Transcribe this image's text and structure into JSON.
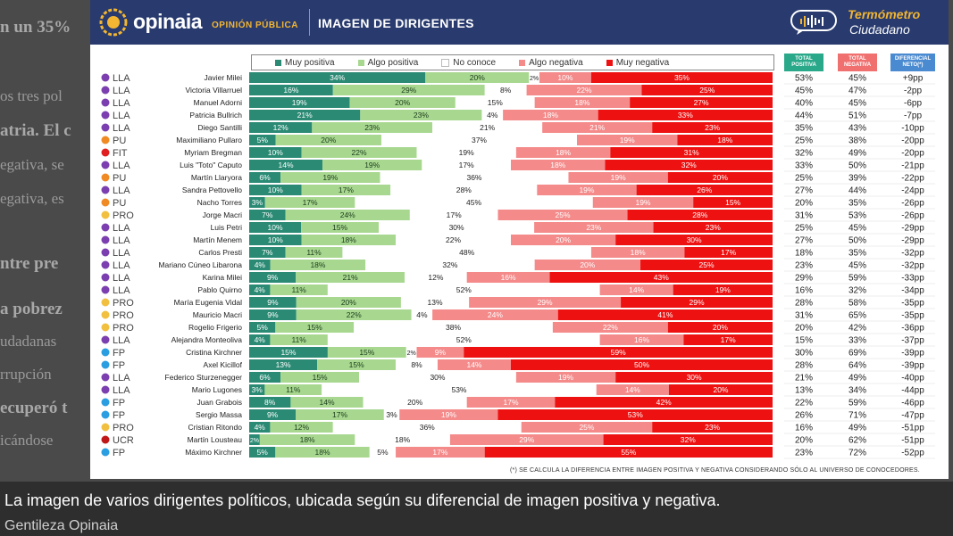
{
  "page": {
    "background_article_lines": [
      {
        "text": "n un 35%",
        "top": 20,
        "bold": true
      },
      {
        "text": "os tres pol",
        "top": 98,
        "bold": false
      },
      {
        "text": "atria. El c",
        "top": 136,
        "bold": true
      },
      {
        "text": "egativa, se",
        "top": 175,
        "bold": false
      },
      {
        "text": "egativa, es",
        "top": 213,
        "bold": false
      },
      {
        "text": "ntre pre",
        "top": 285,
        "bold": true
      },
      {
        "text": "a pobrez",
        "top": 336,
        "bold": true
      },
      {
        "text": "udadanas",
        "top": 373,
        "bold": false
      },
      {
        "text": "rrupción",
        "top": 410,
        "bold": false
      },
      {
        "text": "ecuperó t",
        "top": 447,
        "bold": true
      },
      {
        "text": "icándose",
        "top": 484,
        "bold": false
      }
    ],
    "caption": "La imagen de varios dirigentes políticos, ubicada según su diferencial de imagen positiva y negativa.",
    "credit": "Gentileza Opinaia"
  },
  "header": {
    "brand": "opinaia",
    "brand_sub": "OPINIÓN PÚBLICA",
    "title": "IMAGEN DE DIRIGENTES",
    "thermo_line1": "Termómetro",
    "thermo_line2": "Ciudadano"
  },
  "colors": {
    "muy_positiva": "#2a8a74",
    "algo_positiva": "#a8d890",
    "no_conoce": "#ffffff",
    "algo_negativa": "#f48a8a",
    "muy_negativa": "#ee1111",
    "total_positiva_head": "#2aa88a",
    "total_negativa_head": "#f07070",
    "diferencial_head": "#4a8ad0",
    "header_bg": "#283a6e"
  },
  "party_colors": {
    "LLA": "#7b3fb0",
    "PU": "#f08a24",
    "FIT": "#e02020",
    "PRO": "#f2c040",
    "FP": "#2a9ee0",
    "UCR": "#c01818"
  },
  "legend": [
    "Muy positiva",
    "Algo positiva",
    "No conoce",
    "Algo negativa",
    "Muy negativa"
  ],
  "columns": {
    "total_positiva": [
      "TOTAL",
      "POSITIVA"
    ],
    "total_negativa": [
      "TOTAL",
      "NEGATIVA"
    ],
    "diferencial": [
      "DIFERENCIAL",
      "NETO(*)"
    ]
  },
  "footnote": "(*) SE CALCULA LA DIFERENCIA ENTRE IMAGEN POSITIVA Y NEGATIVA CONSIDERANDO SÓLO AL UNIVERSO DE CONOCEDORES.",
  "chart_data": {
    "type": "bar",
    "stacked": true,
    "orientation": "horizontal",
    "title": "IMAGEN DE DIRIGENTES",
    "segments": [
      "Muy positiva",
      "Algo positiva",
      "No conoce",
      "Algo negativa",
      "Muy negativa"
    ],
    "rows": [
      {
        "party": "LLA",
        "name": "Javier Milei",
        "values": [
          34,
          20,
          2,
          10,
          35
        ],
        "total_pos": "53%",
        "total_neg": "45%",
        "diff": "+9pp"
      },
      {
        "party": "LLA",
        "name": "Victoria Villarruel",
        "values": [
          16,
          29,
          8,
          22,
          25
        ],
        "total_pos": "45%",
        "total_neg": "47%",
        "diff": "-2pp"
      },
      {
        "party": "LLA",
        "name": "Manuel Adorni",
        "values": [
          19,
          20,
          15,
          18,
          27
        ],
        "total_pos": "40%",
        "total_neg": "45%",
        "diff": "-6pp"
      },
      {
        "party": "LLA",
        "name": "Patricia Bullrich",
        "values": [
          21,
          23,
          4,
          18,
          33
        ],
        "total_pos": "44%",
        "total_neg": "51%",
        "diff": "-7pp"
      },
      {
        "party": "LLA",
        "name": "Diego Santilli",
        "values": [
          12,
          23,
          21,
          21,
          23
        ],
        "total_pos": "35%",
        "total_neg": "43%",
        "diff": "-10pp"
      },
      {
        "party": "PU",
        "name": "Maximiliano Pullaro",
        "values": [
          5,
          20,
          37,
          19,
          18
        ],
        "total_pos": "25%",
        "total_neg": "38%",
        "diff": "-20pp"
      },
      {
        "party": "FIT",
        "name": "Myriam Bregman",
        "values": [
          10,
          22,
          19,
          18,
          31
        ],
        "total_pos": "32%",
        "total_neg": "49%",
        "diff": "-20pp"
      },
      {
        "party": "LLA",
        "name": "Luis \"Toto\" Caputo",
        "values": [
          14,
          19,
          17,
          18,
          32
        ],
        "total_pos": "33%",
        "total_neg": "50%",
        "diff": "-21pp"
      },
      {
        "party": "PU",
        "name": "Martín Llaryora",
        "values": [
          6,
          19,
          36,
          19,
          20
        ],
        "total_pos": "25%",
        "total_neg": "39%",
        "diff": "-22pp"
      },
      {
        "party": "LLA",
        "name": "Sandra Pettovello",
        "values": [
          10,
          17,
          28,
          19,
          26
        ],
        "total_pos": "27%",
        "total_neg": "44%",
        "diff": "-24pp"
      },
      {
        "party": "PU",
        "name": "Nacho Torres",
        "values": [
          3,
          17,
          45,
          19,
          15
        ],
        "total_pos": "20%",
        "total_neg": "35%",
        "diff": "-26pp"
      },
      {
        "party": "PRO",
        "name": "Jorge Macri",
        "values": [
          7,
          24,
          17,
          25,
          28
        ],
        "total_pos": "31%",
        "total_neg": "53%",
        "diff": "-26pp"
      },
      {
        "party": "LLA",
        "name": "Luis Petri",
        "values": [
          10,
          15,
          30,
          23,
          23
        ],
        "total_pos": "25%",
        "total_neg": "45%",
        "diff": "-29pp"
      },
      {
        "party": "LLA",
        "name": "Martín Menem",
        "values": [
          10,
          18,
          22,
          20,
          30
        ],
        "total_pos": "27%",
        "total_neg": "50%",
        "diff": "-29pp"
      },
      {
        "party": "LLA",
        "name": "Carlos Presti",
        "values": [
          7,
          11,
          48,
          18,
          17
        ],
        "total_pos": "18%",
        "total_neg": "35%",
        "diff": "-32pp"
      },
      {
        "party": "LLA",
        "name": "Mariano Cúneo Libarona",
        "values": [
          4,
          18,
          32,
          20,
          25
        ],
        "total_pos": "23%",
        "total_neg": "45%",
        "diff": "-32pp"
      },
      {
        "party": "LLA",
        "name": "Karina Milei",
        "values": [
          9,
          21,
          12,
          16,
          43
        ],
        "total_pos": "29%",
        "total_neg": "59%",
        "diff": "-33pp"
      },
      {
        "party": "LLA",
        "name": "Pablo Quirno",
        "values": [
          4,
          11,
          52,
          14,
          19
        ],
        "total_pos": "16%",
        "total_neg": "32%",
        "diff": "-34pp"
      },
      {
        "party": "PRO",
        "name": "María Eugenia Vidal",
        "values": [
          9,
          20,
          13,
          29,
          29
        ],
        "total_pos": "28%",
        "total_neg": "58%",
        "diff": "-35pp"
      },
      {
        "party": "PRO",
        "name": "Mauricio Macri",
        "values": [
          9,
          22,
          4,
          24,
          41
        ],
        "total_pos": "31%",
        "total_neg": "65%",
        "diff": "-35pp"
      },
      {
        "party": "PRO",
        "name": "Rogelio Frigerio",
        "values": [
          5,
          15,
          38,
          22,
          20
        ],
        "total_pos": "20%",
        "total_neg": "42%",
        "diff": "-36pp"
      },
      {
        "party": "LLA",
        "name": "Alejandra Monteoliva",
        "values": [
          4,
          11,
          52,
          16,
          17
        ],
        "total_pos": "15%",
        "total_neg": "33%",
        "diff": "-37pp"
      },
      {
        "party": "FP",
        "name": "Cristina Kirchner",
        "values": [
          15,
          15,
          2,
          9,
          59
        ],
        "total_pos": "30%",
        "total_neg": "69%",
        "diff": "-39pp"
      },
      {
        "party": "FP",
        "name": "Axel Kicillof",
        "values": [
          13,
          15,
          8,
          14,
          50
        ],
        "total_pos": "28%",
        "total_neg": "64%",
        "diff": "-39pp"
      },
      {
        "party": "LLA",
        "name": "Federico Sturzenegger",
        "values": [
          6,
          15,
          30,
          19,
          30
        ],
        "total_pos": "21%",
        "total_neg": "49%",
        "diff": "-40pp"
      },
      {
        "party": "LLA",
        "name": "Mario Lugones",
        "values": [
          3,
          11,
          53,
          14,
          20
        ],
        "total_pos": "13%",
        "total_neg": "34%",
        "diff": "-44pp"
      },
      {
        "party": "FP",
        "name": "Juan Grabois",
        "values": [
          8,
          14,
          20,
          17,
          42
        ],
        "total_pos": "22%",
        "total_neg": "59%",
        "diff": "-46pp"
      },
      {
        "party": "FP",
        "name": "Sergio Massa",
        "values": [
          9,
          17,
          3,
          19,
          53
        ],
        "total_pos": "26%",
        "total_neg": "71%",
        "diff": "-47pp"
      },
      {
        "party": "PRO",
        "name": "Cristian Ritondo",
        "values": [
          4,
          12,
          36,
          25,
          23
        ],
        "total_pos": "16%",
        "total_neg": "49%",
        "diff": "-51pp"
      },
      {
        "party": "UCR",
        "name": "Martín Lousteau",
        "values": [
          2,
          18,
          18,
          29,
          32
        ],
        "total_pos": "20%",
        "total_neg": "62%",
        "diff": "-51pp"
      },
      {
        "party": "FP",
        "name": "Máximo Kirchner",
        "values": [
          5,
          18,
          5,
          17,
          55
        ],
        "total_pos": "23%",
        "total_neg": "72%",
        "diff": "-52pp"
      }
    ]
  }
}
